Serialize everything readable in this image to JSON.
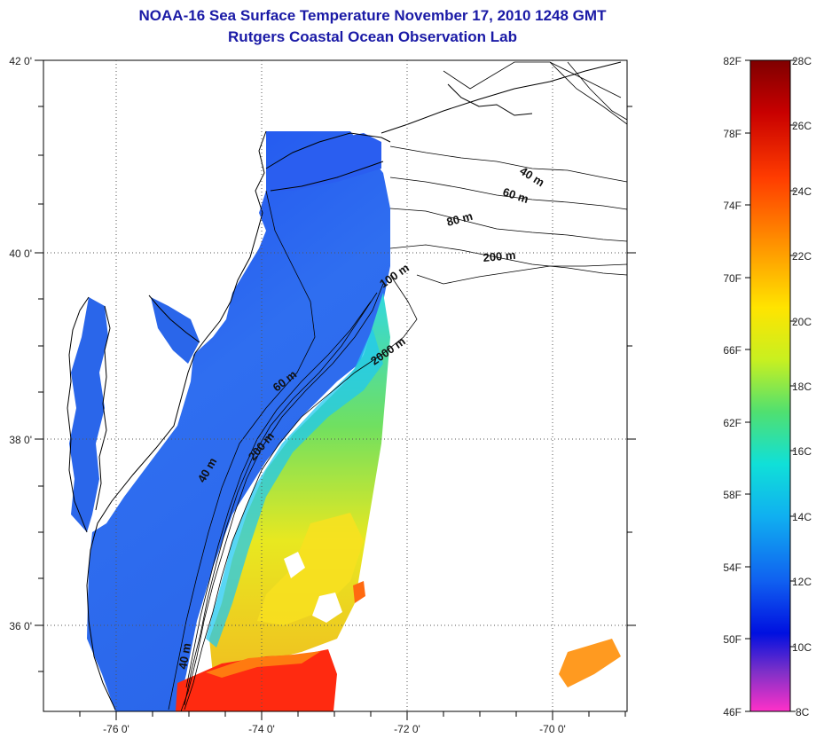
{
  "title": {
    "line1": "NOAA-16 Sea Surface Temperature November 17, 2010 1248 GMT",
    "line2": "Rutgers Coastal Ocean Observation Lab"
  },
  "map": {
    "lat_labels": [
      "42 0'",
      "40 0'",
      "38 0'",
      "36 0'"
    ],
    "lon_labels": [
      "-76 0'",
      "-74 0'",
      "-72 0'",
      "-70 0'"
    ],
    "contour_labels": [
      "40 m",
      "60 m",
      "80 m",
      "200 m",
      "100 m",
      "2000 m",
      "60 m",
      "200 m",
      "40 m",
      "40 m"
    ]
  },
  "colorbar": {
    "f_labels": [
      "82F",
      "78F",
      "74F",
      "70F",
      "66F",
      "62F",
      "58F",
      "54F",
      "50F",
      "46F"
    ],
    "c_labels": [
      "28C",
      "26C",
      "24C",
      "22C",
      "20C",
      "18C",
      "16C",
      "14C",
      "12C",
      "10C",
      "8C"
    ]
  },
  "colors": {
    "title": "#1a1aa6",
    "land": "#ffffff",
    "cold_sst": "#2060e8",
    "warm_sst": "#ff2a10"
  }
}
